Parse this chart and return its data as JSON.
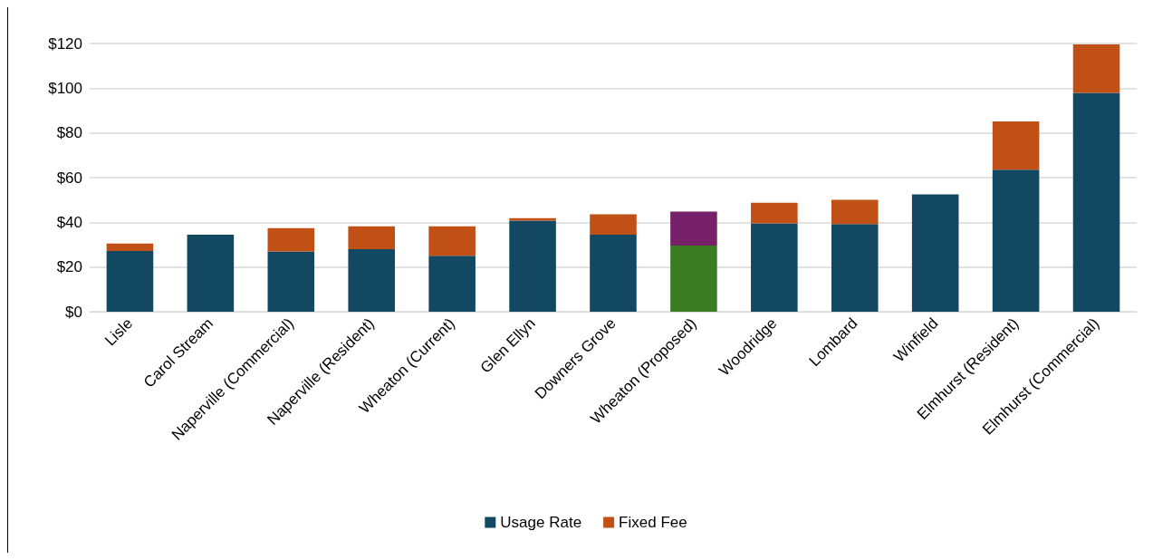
{
  "chart_data": {
    "type": "bar",
    "stacked": true,
    "categories": [
      "Lisle",
      "Carol Stream",
      "Naperville (Commercial)",
      "Naperville (Resident)",
      "Wheaton (Current)",
      "Glen Ellyn",
      "Downers Grove",
      "Wheaton (Proposed)",
      "Woodridge",
      "Lombard",
      "Winfield",
      "Elmhurst (Resident)",
      "Elmhurst (Commercial)"
    ],
    "series": [
      {
        "name": "Usage Rate",
        "color": "#124862",
        "colors": [
          "#124862",
          "#124862",
          "#124862",
          "#124862",
          "#124862",
          "#124862",
          "#124862",
          "#3b7b22",
          "#124862",
          "#124862",
          "#124862",
          "#124862",
          "#124862"
        ],
        "values": [
          27.2,
          34.5,
          27,
          28,
          25,
          40.7,
          34.5,
          29.6,
          39.5,
          39.2,
          52.5,
          63.5,
          97.9
        ]
      },
      {
        "name": "Fixed Fee",
        "color": "#c05016",
        "colors": [
          "#c05016",
          "#c05016",
          "#c05016",
          "#c05016",
          "#c05016",
          "#c05016",
          "#c05016",
          "#772169",
          "#c05016",
          "#c05016",
          "#c05016",
          "#c05016",
          "#c05016"
        ],
        "values": [
          3.3,
          0,
          10.4,
          10.2,
          13.2,
          1.2,
          9.1,
          15.2,
          9.3,
          10.9,
          0,
          21.6,
          21.7
        ]
      }
    ],
    "ylim": [
      0,
      120
    ],
    "yticks": [
      {
        "value": 0,
        "label": "$0"
      },
      {
        "value": 20,
        "label": "$20"
      },
      {
        "value": 40,
        "label": "$40"
      },
      {
        "value": 60,
        "label": "$60"
      },
      {
        "value": 80,
        "label": "$80"
      },
      {
        "value": 100,
        "label": "$100"
      },
      {
        "value": 120,
        "label": "$120"
      }
    ],
    "grid": "y",
    "legend": "bottom"
  }
}
